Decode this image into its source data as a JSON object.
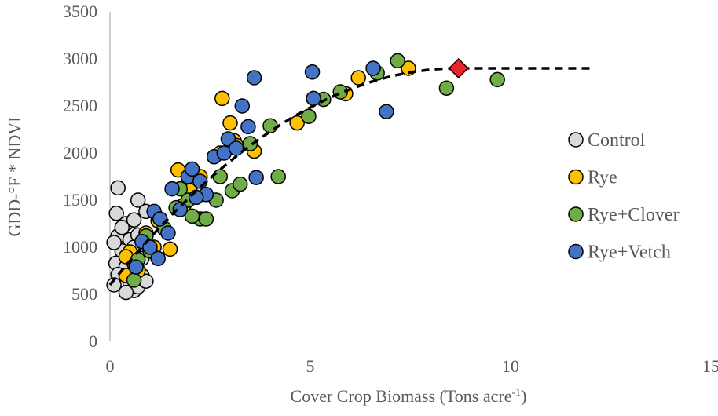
{
  "chart_data": {
    "type": "scatter",
    "xlabel": "Cover Crop Biomass (Tons acre",
    "xlabel_sup": "-1",
    "xlabel_end": ")",
    "ylabel": "GDD-°F * NDVI",
    "xlim": [
      0,
      15
    ],
    "ylim": [
      0,
      3500
    ],
    "xticks": [
      "0",
      "5",
      "10",
      "15"
    ],
    "yticks": [
      "0",
      "500",
      "1000",
      "1500",
      "2000",
      "2500",
      "3000",
      "3500"
    ],
    "grid": false,
    "legend_position": "right",
    "series": [
      {
        "name": "Control",
        "color": "#D9D9D9",
        "points": [
          [
            0.2,
            1630
          ],
          [
            0.16,
            1360
          ],
          [
            0.7,
            1500
          ],
          [
            0.4,
            1250
          ],
          [
            0.9,
            1380
          ],
          [
            0.2,
            1120
          ],
          [
            0.5,
            1080
          ],
          [
            0.6,
            1290
          ],
          [
            0.3,
            960
          ],
          [
            0.15,
            830
          ],
          [
            0.4,
            790
          ],
          [
            0.2,
            710
          ],
          [
            0.1,
            600
          ],
          [
            0.5,
            620
          ],
          [
            0.6,
            540
          ],
          [
            0.7,
            580
          ],
          [
            0.4,
            520
          ],
          [
            0.8,
            700
          ],
          [
            0.9,
            640
          ],
          [
            0.3,
            1210
          ],
          [
            0.6,
            1000
          ],
          [
            0.1,
            1050
          ],
          [
            0.8,
            880
          ],
          [
            0.7,
            1130
          ]
        ]
      },
      {
        "name": "Rye",
        "color": "#FFC000",
        "points": [
          [
            0.4,
            700
          ],
          [
            0.5,
            950
          ],
          [
            0.6,
            830
          ],
          [
            0.7,
            750
          ],
          [
            0.4,
            900
          ],
          [
            0.9,
            1150
          ],
          [
            1.1,
            1000
          ],
          [
            1.5,
            980
          ],
          [
            1.7,
            1820
          ],
          [
            1.2,
            1280
          ],
          [
            2.0,
            1600
          ],
          [
            2.25,
            1750
          ],
          [
            2.75,
            2000
          ],
          [
            2.8,
            2580
          ],
          [
            3.0,
            2320
          ],
          [
            3.1,
            2130
          ],
          [
            3.15,
            2080
          ],
          [
            3.6,
            2020
          ],
          [
            4.67,
            2320
          ],
          [
            5.88,
            2630
          ],
          [
            6.2,
            2800
          ],
          [
            7.45,
            2900
          ],
          [
            1.85,
            1450
          ]
        ]
      },
      {
        "name": "Rye+Clover",
        "color": "#70AD47",
        "points": [
          [
            0.6,
            650
          ],
          [
            0.7,
            870
          ],
          [
            0.9,
            1120
          ],
          [
            1.0,
            960
          ],
          [
            1.35,
            1200
          ],
          [
            1.75,
            1620
          ],
          [
            1.95,
            1500
          ],
          [
            2.25,
            1300
          ],
          [
            2.4,
            1300
          ],
          [
            2.65,
            1500
          ],
          [
            2.75,
            1750
          ],
          [
            3.05,
            1600
          ],
          [
            3.25,
            1670
          ],
          [
            3.5,
            2100
          ],
          [
            4.0,
            2290
          ],
          [
            4.2,
            1750
          ],
          [
            4.96,
            2390
          ],
          [
            5.33,
            2570
          ],
          [
            5.75,
            2650
          ],
          [
            6.67,
            2850
          ],
          [
            7.18,
            2980
          ],
          [
            8.4,
            2690
          ],
          [
            9.67,
            2780
          ],
          [
            2.05,
            1330
          ],
          [
            1.65,
            1420
          ]
        ]
      },
      {
        "name": "Rye+Vetch",
        "color": "#4472C4",
        "points": [
          [
            0.65,
            790
          ],
          [
            0.8,
            1060
          ],
          [
            1.0,
            1000
          ],
          [
            1.1,
            1380
          ],
          [
            1.25,
            1300
          ],
          [
            1.55,
            1620
          ],
          [
            1.95,
            1750
          ],
          [
            2.05,
            1830
          ],
          [
            2.25,
            1700
          ],
          [
            2.4,
            1560
          ],
          [
            2.6,
            1960
          ],
          [
            2.85,
            2000
          ],
          [
            2.95,
            2150
          ],
          [
            3.15,
            2050
          ],
          [
            3.3,
            2500
          ],
          [
            3.45,
            2280
          ],
          [
            3.6,
            2800
          ],
          [
            3.65,
            1740
          ],
          [
            5.05,
            2860
          ],
          [
            5.08,
            2580
          ],
          [
            6.57,
            2900
          ],
          [
            6.9,
            2440
          ],
          [
            1.45,
            1150
          ],
          [
            1.75,
            1400
          ],
          [
            2.15,
            1530
          ],
          [
            1.2,
            880
          ]
        ]
      }
    ],
    "trendline": {
      "style": "dashed",
      "color": "#000000",
      "x_range": [
        0,
        12
      ],
      "plateau_x": 8.7,
      "plateau_y": 2900,
      "start_y": 600
    },
    "marker": {
      "shape": "diamond",
      "color": "#E8262A",
      "x": 8.7,
      "y": 2900
    }
  }
}
